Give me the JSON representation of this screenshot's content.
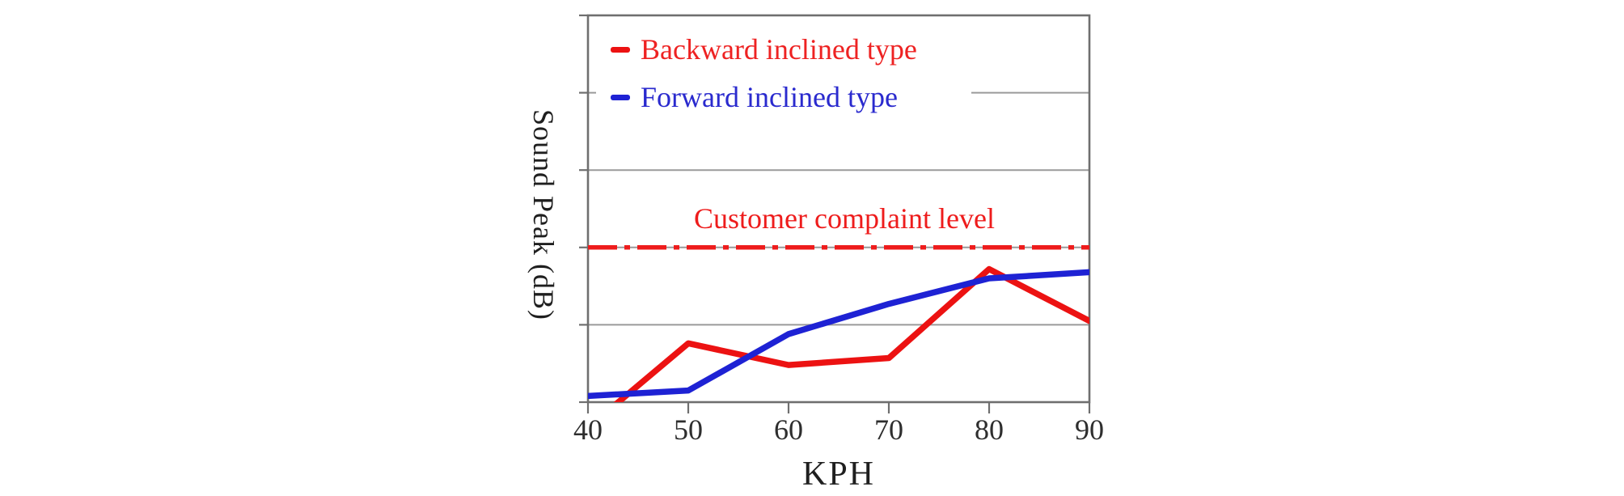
{
  "figure": {
    "y_axis_label": "Sound Peak (dB)",
    "x_axis_label": "KPH",
    "annotation": "Customer complaint level",
    "background": "#ffffff",
    "axis_color": "#6f6f6f",
    "grid_color": "#9a9a9a",
    "tick_label_color": "#2e2e2e"
  },
  "legend": {
    "items": [
      {
        "label": "Backward inclined type",
        "color": "#ee2222"
      },
      {
        "label": "Forward inclined type",
        "color": "#2a2ace"
      }
    ]
  },
  "chart_data": {
    "type": "line",
    "title": "",
    "xlabel": "KPH",
    "ylabel": "Sound Peak (dB)",
    "x": [
      40,
      50,
      60,
      70,
      80,
      90
    ],
    "categories": [
      "40",
      "50",
      "60",
      "70",
      "80",
      "90"
    ],
    "xlim": [
      40,
      90
    ],
    "ylim": [
      0,
      5
    ],
    "y_units": "unlabeled relative units (y axis has gridlines but no numeric tick labels)",
    "gridlines_y": [
      1,
      2,
      3,
      4
    ],
    "grid": true,
    "legend_position": "upper-left-inside",
    "series": [
      {
        "name": "Backward inclined type",
        "color": "#ec1212",
        "values": [
          -0.33,
          0.76,
          0.48,
          0.57,
          1.72,
          1.05
        ],
        "note": "clipped below x-axis near 40 KPH; enters plot at ~44.5 KPH"
      },
      {
        "name": "Forward inclined type",
        "color": "#1e22d4",
        "values": [
          0.08,
          0.15,
          0.88,
          1.27,
          1.6,
          1.68
        ]
      }
    ],
    "reference_line": {
      "label": "Customer complaint level",
      "value": 2.0,
      "color": "#ee1c1c",
      "style": "dash-dot"
    }
  }
}
